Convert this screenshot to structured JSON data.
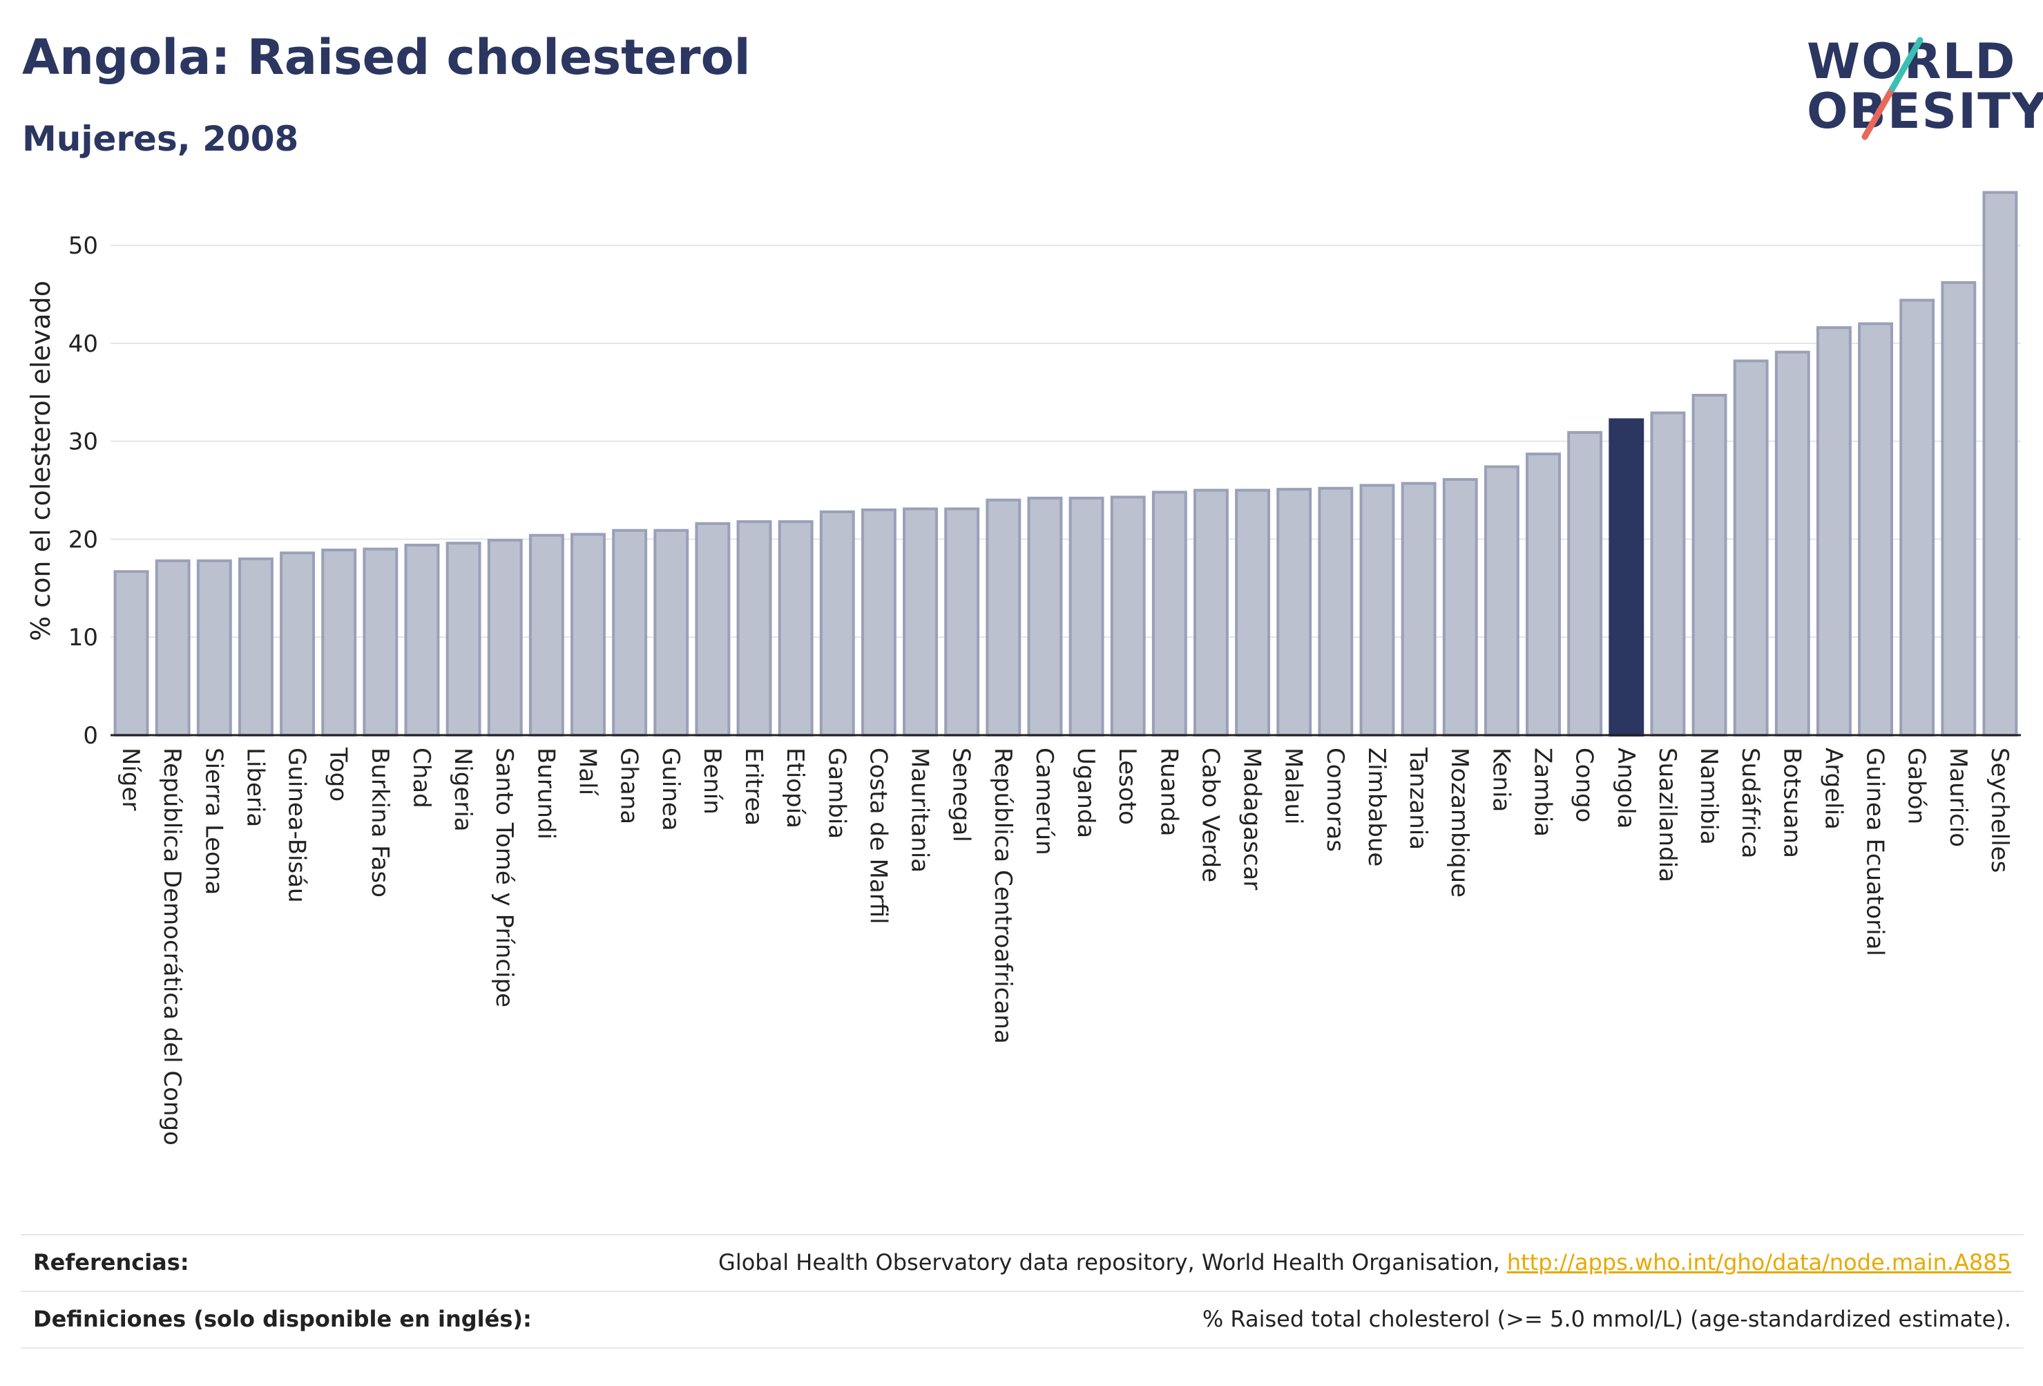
{
  "header": {
    "title": "Angola: Raised cholesterol",
    "subtitle": "Mujeres, 2008"
  },
  "logo": {
    "line1": "WORLD",
    "line2": "OBESITY",
    "colors": {
      "text": "#2b3661",
      "slash_teal": "#3bbfb4",
      "slash_coral": "#e8685a"
    }
  },
  "chart_data": {
    "type": "bar",
    "title": "Angola: Raised cholesterol",
    "subtitle": "Mujeres, 2008",
    "xlabel": "",
    "ylabel": "% con el colesterol elevado",
    "ylim": [
      0,
      56
    ],
    "yticks": [
      0,
      10,
      20,
      30,
      40,
      50
    ],
    "grid": true,
    "highlight": "Angola",
    "colors": {
      "bar": "#bcc1cf",
      "bar_edge": "#9aa0b8",
      "highlight": "#2b3661",
      "grid": "#e3e4ea",
      "axis": "#222222"
    },
    "categories": [
      "Níger",
      "República Democrática del Congo",
      "Sierra Leona",
      "Liberia",
      "Guinea-Bisáu",
      "Togo",
      "Burkina Faso",
      "Chad",
      "Nigeria",
      "Santo Tomé y Príncipe",
      "Burundi",
      "Malí",
      "Ghana",
      "Guinea",
      "Benín",
      "Eritrea",
      "Etiopía",
      "Gambia",
      "Costa de Marfil",
      "Mauritania",
      "Senegal",
      "República Centroafricana",
      "Camerún",
      "Uganda",
      "Lesoto",
      "Ruanda",
      "Cabo Verde",
      "Madagascar",
      "Malaui",
      "Comoras",
      "Zimbabue",
      "Tanzania",
      "Mozambique",
      "Kenia",
      "Zambia",
      "Congo",
      "Angola",
      "Suazilandia",
      "Namibia",
      "Sudáfrica",
      "Botsuana",
      "Argelia",
      "Guinea Ecuatorial",
      "Gabón",
      "Mauricio",
      "Seychelles"
    ],
    "values": [
      16.7,
      17.8,
      17.8,
      18.0,
      18.6,
      18.9,
      19.0,
      19.4,
      19.6,
      19.9,
      20.4,
      20.5,
      20.9,
      20.9,
      21.6,
      21.8,
      21.8,
      22.8,
      23.0,
      23.1,
      23.1,
      24.0,
      24.2,
      24.2,
      24.3,
      24.8,
      25.0,
      25.0,
      25.1,
      25.2,
      25.5,
      25.7,
      26.1,
      27.4,
      28.7,
      30.9,
      32.2,
      32.9,
      34.7,
      38.2,
      39.1,
      41.6,
      42.0,
      44.4,
      46.2,
      55.4
    ]
  },
  "references": {
    "ref_label": "Referencias:",
    "ref_text": "Global Health Observatory data repository, World Health Organisation, ",
    "ref_link": "http://apps.who.int/gho/data/node.main.A885",
    "def_label": "Definiciones (solo disponible en inglés):",
    "def_text": "% Raised total cholesterol (>= 5.0 mmol/L) (age-standardized estimate)."
  }
}
